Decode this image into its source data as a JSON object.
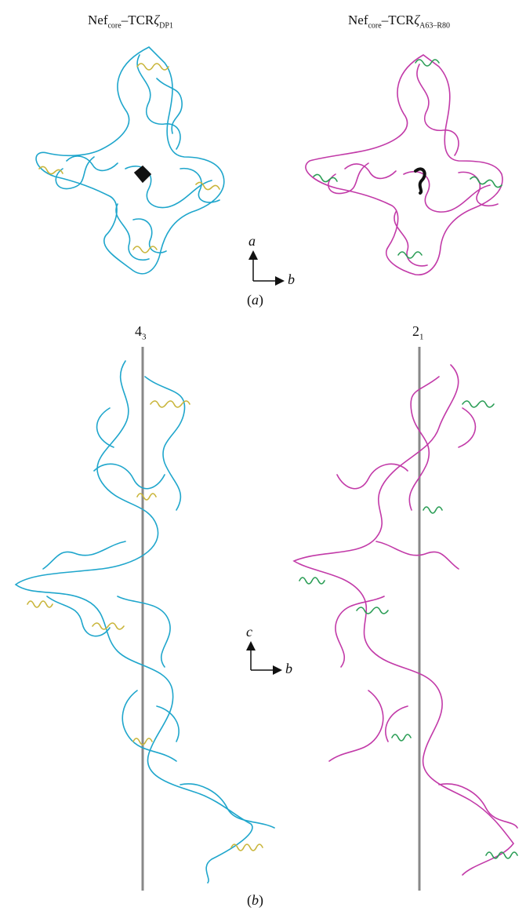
{
  "panel_a": {
    "label": "(a)",
    "left_title": {
      "main": "Nef",
      "sub1": "core",
      "mid": "–TCR",
      "greek": "ζ",
      "sub2": "DP1"
    },
    "right_title": {
      "main": "Nef",
      "sub1": "core",
      "mid": "–TCR",
      "greek": "ζ",
      "sub2": "A63–R80"
    },
    "axis_vertical": "a",
    "axis_horizontal": "b"
  },
  "panel_b": {
    "label": "(b)",
    "left_axis": {
      "base": "4",
      "sub": "3"
    },
    "right_axis": {
      "base": "2",
      "sub": "1"
    },
    "axis_vertical": "c",
    "axis_horizontal": "b"
  },
  "colors": {
    "cyan_protein": "#1fa6cc",
    "yellow_peptide": "#c9b53a",
    "magenta_protein": "#c23aa8",
    "green_peptide": "#2a9d55",
    "screw_axis": "#888888",
    "symmetry_marker": "#111111"
  }
}
